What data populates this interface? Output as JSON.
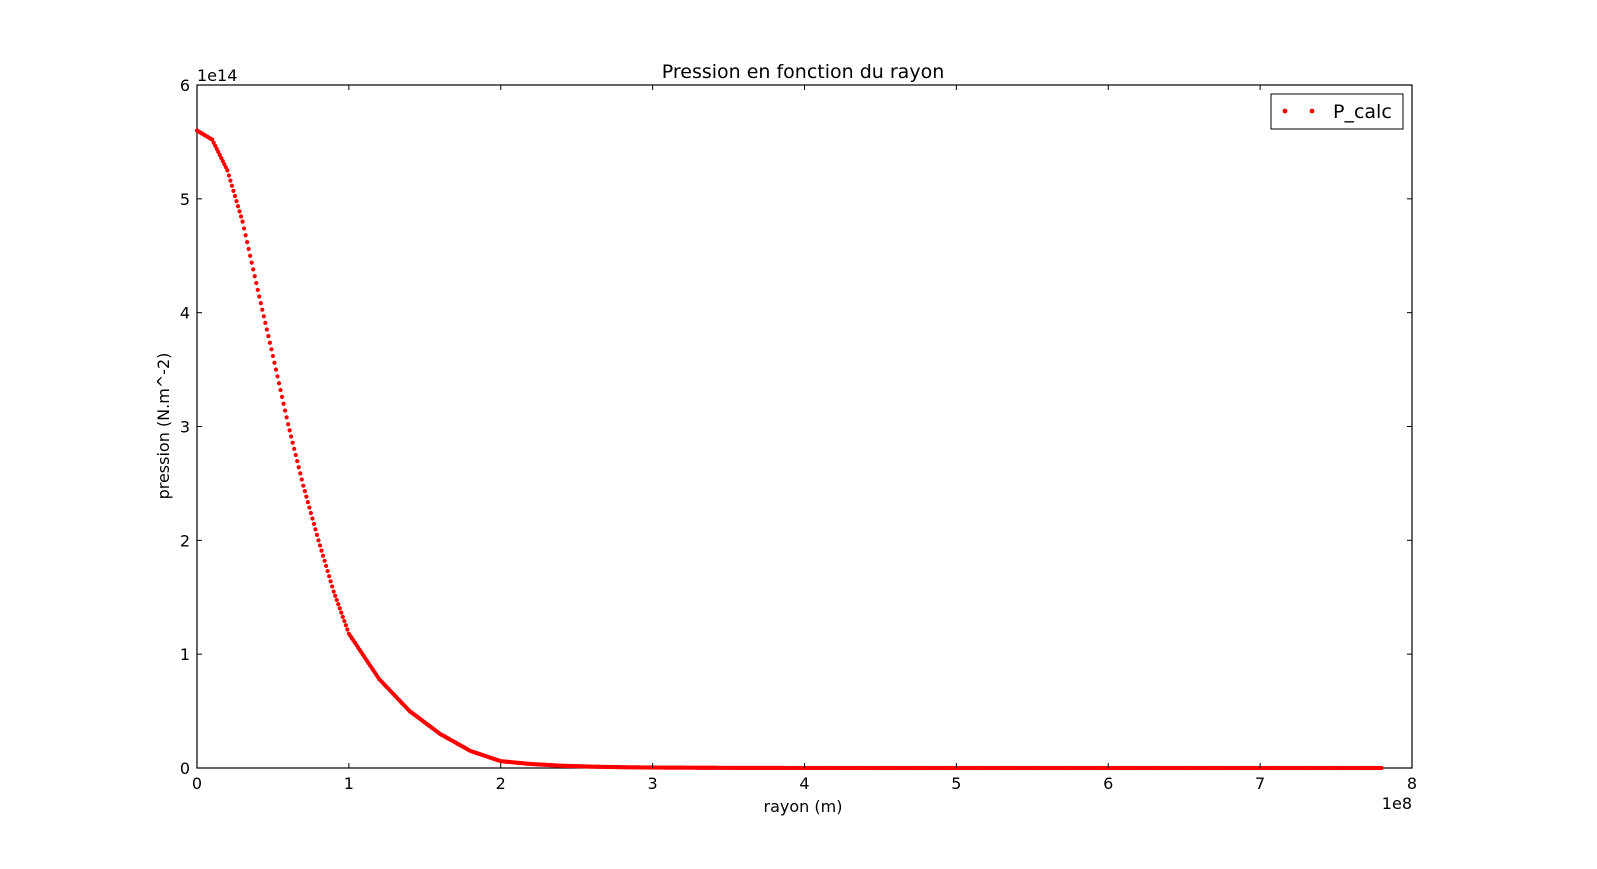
{
  "chart_data": {
    "type": "scatter",
    "title": "Pression en fonction du rayon",
    "xlabel": "rayon (m)",
    "ylabel": "pression (N.m^-2)",
    "x_offset_label": "1e8",
    "y_offset_label": "1e14",
    "xlim": [
      0,
      8
    ],
    "ylim": [
      0,
      6
    ],
    "x_ticks": [
      0,
      1,
      2,
      3,
      4,
      5,
      6,
      7,
      8
    ],
    "y_ticks": [
      0,
      1,
      2,
      3,
      4,
      5,
      6
    ],
    "x_tick_labels": [
      "0",
      "1",
      "2",
      "3",
      "4",
      "5",
      "6",
      "7",
      "8"
    ],
    "y_tick_labels": [
      "0",
      "1",
      "2",
      "3",
      "4",
      "5",
      "6"
    ],
    "grid": false,
    "legend_position": "top-right",
    "series": [
      {
        "name": "P_calc",
        "color": "#ff0000",
        "marker": "dot",
        "x_range": [
          0,
          7.8
        ],
        "x": [
          0,
          0.1,
          0.2,
          0.3,
          0.4,
          0.5,
          0.6,
          0.7,
          0.8,
          0.9,
          1.0,
          1.2,
          1.4,
          1.6,
          1.8,
          2.0,
          2.2,
          2.4,
          2.6,
          2.8,
          3.0,
          3.5,
          4.0,
          5.0,
          6.0,
          7.0,
          7.8
        ],
        "y": [
          5.6,
          5.52,
          5.25,
          4.8,
          4.2,
          3.62,
          3.02,
          2.48,
          2.0,
          1.55,
          1.18,
          0.78,
          0.5,
          0.3,
          0.15,
          0.06,
          0.035,
          0.02,
          0.012,
          0.007,
          0.004,
          0.0015,
          0.0005,
          0.0001,
          0.0,
          0.0,
          0.0
        ]
      }
    ]
  }
}
